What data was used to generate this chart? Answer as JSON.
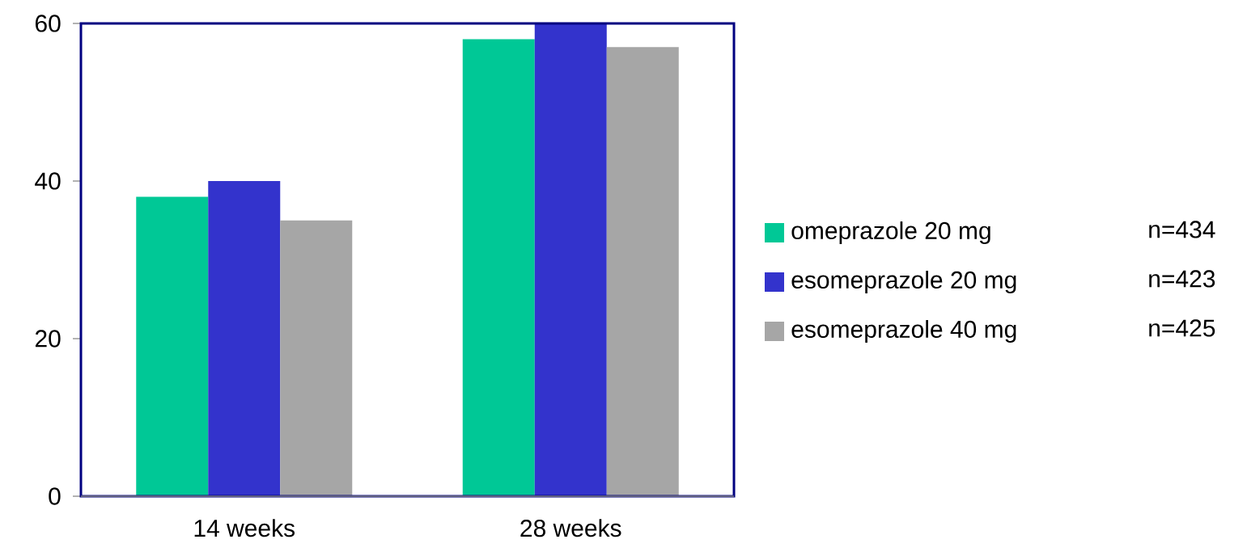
{
  "chart_data": {
    "type": "bar",
    "categories": [
      "14 weeks",
      "28 weeks"
    ],
    "series": [
      {
        "name": "omeprazole 20 mg",
        "color": "#00c896",
        "values": [
          38,
          58
        ]
      },
      {
        "name": "esomeprazole 20 mg",
        "color": "#3333cc",
        "values": [
          40,
          60
        ]
      },
      {
        "name": "esomeprazole 40 mg",
        "color": "#a6a6a6",
        "values": [
          35,
          57
        ]
      }
    ],
    "ylim": [
      0,
      60
    ],
    "yticks": [
      0,
      20,
      40,
      60
    ],
    "grid": false,
    "legend": "right",
    "annotations": [
      "n=434",
      "n=423",
      "n=425"
    ]
  }
}
